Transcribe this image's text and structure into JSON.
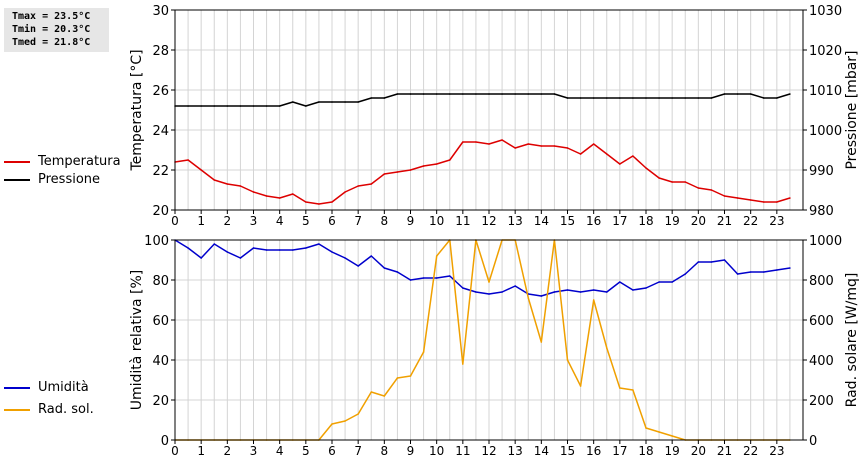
{
  "stats": {
    "tmax": "Tmax = 23.5°C",
    "tmin": "Tmin = 20.3°C",
    "tmed": "Tmed = 21.8°C"
  },
  "legend_top": [
    {
      "label": "Temperatura",
      "color": "#dd0000"
    },
    {
      "label": "Pressione",
      "color": "#000000"
    }
  ],
  "legend_bottom": [
    {
      "label": "Umidità",
      "color": "#0000cc"
    },
    {
      "label": "Rad. sol.",
      "color": "#f0a000"
    }
  ],
  "chart_data": [
    {
      "type": "line",
      "xlabel": "",
      "xlim": [
        0,
        24
      ],
      "x_ticks": [
        0,
        1,
        2,
        3,
        4,
        5,
        6,
        7,
        8,
        9,
        10,
        11,
        12,
        13,
        14,
        15,
        16,
        17,
        18,
        19,
        20,
        21,
        22,
        23
      ],
      "y_left": {
        "label": "Temperatura [°C]",
        "ylim": [
          20,
          30
        ],
        "ticks": [
          20,
          22,
          24,
          26,
          28,
          30
        ]
      },
      "y_right": {
        "label": "Pressione [mbar]",
        "ylim": [
          980,
          1030
        ],
        "ticks": [
          980,
          990,
          1000,
          1010,
          1020,
          1030
        ]
      },
      "grid": true,
      "series": [
        {
          "name": "Temperatura",
          "axis": "left",
          "color": "#dd0000",
          "x": [
            0,
            0.5,
            1,
            1.5,
            2,
            2.5,
            3,
            3.5,
            4,
            4.5,
            5,
            5.5,
            6,
            6.5,
            7,
            7.5,
            8,
            8.5,
            9,
            9.5,
            10,
            10.5,
            11,
            11.5,
            12,
            12.5,
            13,
            13.5,
            14,
            14.5,
            15,
            15.5,
            16,
            16.5,
            17,
            17.5,
            18,
            18.5,
            19,
            19.5,
            20,
            20.5,
            21,
            21.5,
            22,
            22.5,
            23,
            23.5
          ],
          "values": [
            22.4,
            22.5,
            22.0,
            21.5,
            21.3,
            21.2,
            20.9,
            20.7,
            20.6,
            20.8,
            20.4,
            20.3,
            20.4,
            20.9,
            21.2,
            21.3,
            21.8,
            21.9,
            22.0,
            22.2,
            22.3,
            22.5,
            23.4,
            23.4,
            23.3,
            23.5,
            23.1,
            23.3,
            23.2,
            23.2,
            23.1,
            22.8,
            23.3,
            22.8,
            22.3,
            22.7,
            22.1,
            21.6,
            21.4,
            21.4,
            21.1,
            21.0,
            20.7,
            20.6,
            20.5,
            20.4,
            20.4,
            20.6
          ]
        },
        {
          "name": "Pressione",
          "axis": "right",
          "color": "#000000",
          "x": [
            0,
            0.5,
            1,
            1.5,
            2,
            2.5,
            3,
            3.5,
            4,
            4.5,
            5,
            5.5,
            6,
            6.5,
            7,
            7.5,
            8,
            8.5,
            9,
            9.5,
            10,
            10.5,
            11,
            11.5,
            12,
            12.5,
            13,
            13.5,
            14,
            14.5,
            15,
            15.5,
            16,
            16.5,
            17,
            17.5,
            18,
            18.5,
            19,
            19.5,
            20,
            20.5,
            21,
            21.5,
            22,
            22.5,
            23,
            23.5
          ],
          "values": [
            1006,
            1006,
            1006,
            1006,
            1006,
            1006,
            1006,
            1006,
            1006,
            1007,
            1006,
            1007,
            1007,
            1007,
            1007,
            1008,
            1008,
            1009,
            1009,
            1009,
            1009,
            1009,
            1009,
            1009,
            1009,
            1009,
            1009,
            1009,
            1009,
            1009,
            1008,
            1008,
            1008,
            1008,
            1008,
            1008,
            1008,
            1008,
            1008,
            1008,
            1008,
            1008,
            1009,
            1009,
            1009,
            1008,
            1008,
            1009
          ]
        }
      ]
    },
    {
      "type": "line",
      "xlabel": "",
      "xlim": [
        0,
        24
      ],
      "x_ticks": [
        0,
        1,
        2,
        3,
        4,
        5,
        6,
        7,
        8,
        9,
        10,
        11,
        12,
        13,
        14,
        15,
        16,
        17,
        18,
        19,
        20,
        21,
        22,
        23
      ],
      "y_left": {
        "label": "Umidità relativa [%]",
        "ylim": [
          0,
          100
        ],
        "ticks": [
          0,
          20,
          40,
          60,
          80,
          100
        ]
      },
      "y_right": {
        "label": "Rad. solare [W/mq]",
        "ylim": [
          0,
          1000
        ],
        "ticks": [
          0,
          200,
          400,
          600,
          800,
          1000
        ]
      },
      "grid": true,
      "series": [
        {
          "name": "Umidità",
          "axis": "left",
          "color": "#0000cc",
          "x": [
            0,
            0.5,
            1,
            1.5,
            2,
            2.5,
            3,
            3.5,
            4,
            4.5,
            5,
            5.5,
            6,
            6.5,
            7,
            7.5,
            8,
            8.5,
            9,
            9.5,
            10,
            10.5,
            11,
            11.5,
            12,
            12.5,
            13,
            13.5,
            14,
            14.5,
            15,
            15.5,
            16,
            16.5,
            17,
            17.5,
            18,
            18.5,
            19,
            19.5,
            20,
            20.5,
            21,
            21.5,
            22,
            22.5,
            23,
            23.5
          ],
          "values": [
            100,
            96,
            91,
            98,
            94,
            91,
            96,
            95,
            95,
            95,
            96,
            98,
            94,
            91,
            87,
            92,
            86,
            84,
            80,
            81,
            81,
            82,
            76,
            74,
            73,
            74,
            77,
            73,
            72,
            74,
            75,
            74,
            75,
            74,
            79,
            75,
            76,
            79,
            79,
            83,
            89,
            89,
            90,
            83,
            84,
            84,
            85,
            86
          ]
        },
        {
          "name": "Rad. sol.",
          "axis": "right",
          "color": "#f0a000",
          "x": [
            0,
            0.5,
            1,
            1.5,
            2,
            2.5,
            3,
            3.5,
            4,
            4.5,
            5,
            5.5,
            6,
            6.5,
            7,
            7.5,
            8,
            8.5,
            9,
            9.5,
            10,
            10.5,
            11,
            11.5,
            12,
            12.5,
            13,
            13.5,
            14,
            14.5,
            15,
            15.5,
            16,
            16.5,
            17,
            17.5,
            18,
            18.5,
            19,
            19.5,
            20,
            20.5,
            21,
            21.5,
            22,
            22.5,
            23,
            23.5
          ],
          "values": [
            0,
            0,
            0,
            0,
            0,
            0,
            0,
            0,
            0,
            0,
            0,
            0,
            80,
            95,
            130,
            240,
            220,
            310,
            320,
            440,
            920,
            1000,
            380,
            1000,
            790,
            1000,
            1000,
            710,
            490,
            1000,
            400,
            270,
            700,
            460,
            260,
            250,
            60,
            40,
            20,
            0,
            0,
            0,
            0,
            0,
            0,
            0,
            0,
            0
          ]
        }
      ]
    }
  ]
}
